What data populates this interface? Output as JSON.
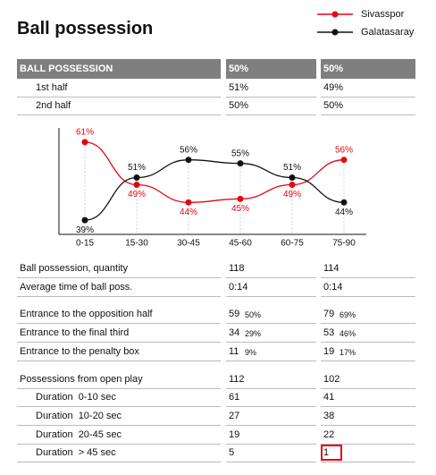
{
  "title": "Ball possession",
  "summary": {
    "header": [
      "BALL POSSESSION",
      "50%",
      "50%"
    ],
    "rows": [
      {
        "label": "1st half",
        "indent": true,
        "cells": [
          {
            "value": "51%"
          },
          {
            "value": "49%"
          }
        ]
      },
      {
        "label": "2nd half",
        "indent": true,
        "cells": [
          {
            "value": "50%"
          },
          {
            "value": "50%"
          }
        ]
      }
    ]
  },
  "chart_data": {
    "type": "line",
    "categories": [
      "0-15",
      "15-30",
      "30-45",
      "45-60",
      "60-75",
      "75-90"
    ],
    "ylim": [
      35,
      65
    ],
    "series": [
      {
        "name": "Sivasspor",
        "color": "#e30613",
        "values": [
          61,
          49,
          44,
          45,
          49,
          56
        ],
        "value_labels": [
          "61%",
          "49%",
          "44%",
          "45%",
          "49%",
          "56%"
        ]
      },
      {
        "name": "Galatasaray",
        "color": "#111111",
        "values": [
          39,
          51,
          56,
          55,
          51,
          44
        ],
        "value_labels": [
          "39%",
          "51%",
          "56%",
          "55%",
          "51%",
          "44%"
        ]
      }
    ]
  },
  "details": {
    "groups": [
      [
        {
          "label": "Ball possession, quantity",
          "cells": [
            {
              "value": "118"
            },
            {
              "value": "114"
            }
          ]
        },
        {
          "label": "Average time of ball poss.",
          "cells": [
            {
              "value": "0:14"
            },
            {
              "value": "0:14"
            }
          ]
        }
      ],
      [
        {
          "label": "Entrance to the opposition half",
          "cells": [
            {
              "value": "59",
              "share": "50%"
            },
            {
              "value": "79",
              "share": "69%"
            }
          ]
        },
        {
          "label": "Entrance to the final third",
          "cells": [
            {
              "value": "34",
              "share": "29%"
            },
            {
              "value": "53",
              "share": "46%"
            }
          ]
        },
        {
          "label": "Entrance to the penalty box",
          "cells": [
            {
              "value": "11",
              "share": "9%"
            },
            {
              "value": "19",
              "share": "17%"
            }
          ]
        }
      ],
      [
        {
          "label": "Possessions from open play",
          "cells": [
            {
              "value": "112"
            },
            {
              "value": "102"
            }
          ]
        },
        {
          "label": "Duration  0-10 sec",
          "indent": true,
          "cells": [
            {
              "value": "61"
            },
            {
              "value": "41"
            }
          ]
        },
        {
          "label": "Duration  10-20 sec",
          "indent": true,
          "cells": [
            {
              "value": "27"
            },
            {
              "value": "38"
            }
          ]
        },
        {
          "label": "Duration  20-45 sec",
          "indent": true,
          "cells": [
            {
              "value": "19"
            },
            {
              "value": "22"
            }
          ]
        },
        {
          "label": "Duration  > 45 sec",
          "indent": true,
          "cells": [
            {
              "value": "5"
            },
            {
              "value": "1",
              "highlight": true
            }
          ]
        }
      ]
    ]
  }
}
